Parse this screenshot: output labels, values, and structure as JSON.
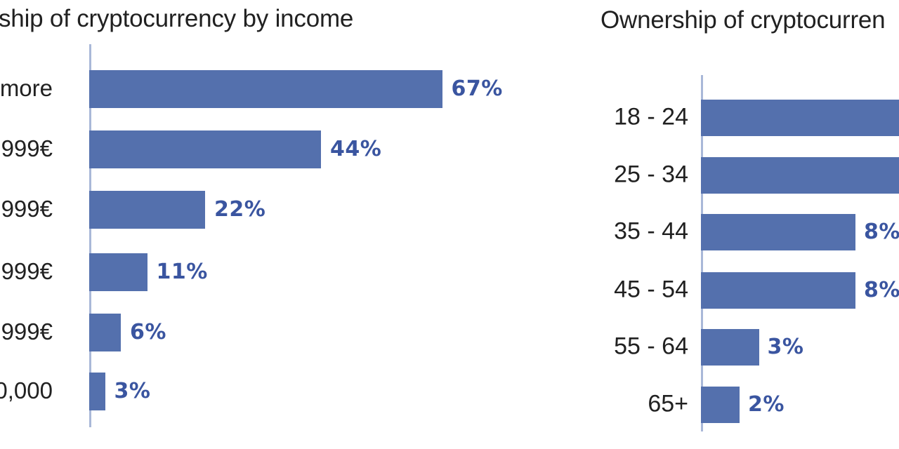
{
  "colors": {
    "bar": "#5470ad",
    "axis": "#a9b8d8",
    "value_label": "#3a55a0",
    "text": "#212121",
    "background": "#ffffff"
  },
  "chart_data": [
    {
      "id": "income",
      "type": "bar",
      "orientation": "horizontal",
      "title": "ship of cryptocurrency by income",
      "note": "left edge of screenshot crops the title and the category labels",
      "categories": [
        "more",
        "999€",
        "999€",
        "999€",
        "999€",
        "0,000"
      ],
      "values": [
        67,
        44,
        22,
        11,
        6,
        3
      ],
      "value_labels": [
        "67%",
        "44%",
        "22%",
        "11%",
        "6%",
        "3%"
      ],
      "bars_cut_off": [
        false,
        false,
        false,
        false,
        false,
        false
      ],
      "xlim": [
        0,
        80
      ],
      "grid": false,
      "legend": false,
      "bar_color": "#5470ad",
      "axis_color": "#a9b8d8",
      "value_label_color": "#3a55a0"
    },
    {
      "id": "age",
      "type": "bar",
      "orientation": "horizontal",
      "title": "Ownership of cryptocurren",
      "note": "right edge of screenshot crops the title; bars for 18 - 24 and 25 - 34 extend past the right edge so their values are not visible",
      "categories": [
        "18 - 24",
        "25 - 34",
        "35 - 44",
        "45 - 54",
        "55 - 64",
        "65+"
      ],
      "values": [
        null,
        null,
        8,
        8,
        3,
        2
      ],
      "value_labels": [
        null,
        null,
        "8%",
        "8%",
        "3%",
        "2%"
      ],
      "bars_cut_off": [
        true,
        true,
        false,
        false,
        false,
        false
      ],
      "grid": false,
      "legend": false,
      "bar_color": "#5470ad",
      "axis_color": "#a9b8d8",
      "value_label_color": "#3a55a0"
    }
  ]
}
